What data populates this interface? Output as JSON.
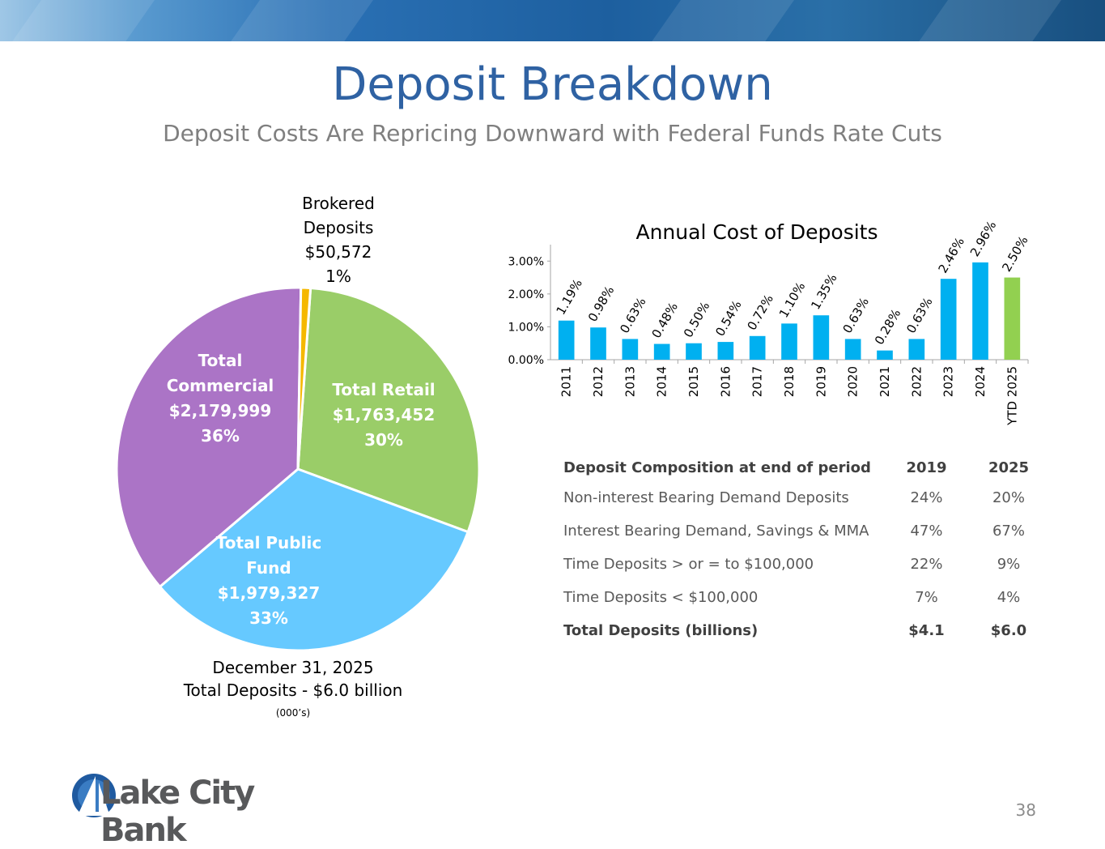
{
  "header": {
    "title": "Deposit Breakdown",
    "subtitle": "Deposit Costs Are Repricing Downward with Federal Funds Rate Cuts"
  },
  "chart_data": [
    {
      "type": "pie",
      "slices": [
        {
          "label": "Total Retail",
          "value": 1763452,
          "value_text": "$1,763,452",
          "percent": "30%",
          "color": "#9acd68"
        },
        {
          "label": "Total Public Fund",
          "value": 1979327,
          "value_text": "$1,979,327",
          "percent": "33%",
          "color": "#66c9ff"
        },
        {
          "label": "Total Commercial",
          "value": 2179999,
          "value_text": "$2,179,999",
          "percent": "36%",
          "color": "#ab74c6"
        },
        {
          "label": "Brokered Deposits",
          "value": 50572,
          "value_text": "$50,572",
          "percent": "1%",
          "color": "#f5b800"
        }
      ],
      "caption_date": "December 31, 2025",
      "caption_total": "Total Deposits - $6.0 billion",
      "caption_units": "(000’s)"
    },
    {
      "type": "bar",
      "title": "Annual Cost of Deposits",
      "categories": [
        "2011",
        "2012",
        "2013",
        "2014",
        "2015",
        "2016",
        "2017",
        "2018",
        "2019",
        "2020",
        "2021",
        "2022",
        "2023",
        "2024",
        "YTD 2025"
      ],
      "values": [
        1.19,
        0.98,
        0.63,
        0.48,
        0.5,
        0.54,
        0.72,
        1.1,
        1.35,
        0.63,
        0.28,
        0.63,
        2.46,
        2.96,
        2.5
      ],
      "labels": [
        "1.19%",
        "0.98%",
        "0.63%",
        "0.48%",
        "0.50%",
        "0.54%",
        "0.72%",
        "1.10%",
        "1.35%",
        "0.63%",
        "0.28%",
        "0.63%",
        "2.46%",
        "2.96%",
        "2.50%"
      ],
      "colors": [
        "#00b0f0",
        "#00b0f0",
        "#00b0f0",
        "#00b0f0",
        "#00b0f0",
        "#00b0f0",
        "#00b0f0",
        "#00b0f0",
        "#00b0f0",
        "#00b0f0",
        "#00b0f0",
        "#00b0f0",
        "#00b0f0",
        "#00b0f0",
        "#92d050"
      ],
      "yticks": [
        "0.00%",
        "1.00%",
        "2.00%",
        "3.00%"
      ],
      "ylim": [
        0,
        3.5
      ]
    }
  ],
  "composition": {
    "header": [
      "Deposit Composition at end of period",
      "2019",
      "2025"
    ],
    "rows": [
      [
        "Non-interest Bearing Demand Deposits",
        "24%",
        "20%"
      ],
      [
        "Interest Bearing Demand, Savings & MMA",
        "47%",
        "67%"
      ],
      [
        "Time Deposits > or = to $100,000",
        "22%",
        "9%"
      ],
      [
        "Time Deposits < $100,000",
        "7%",
        "4%"
      ]
    ],
    "total": [
      "Total Deposits (billions)",
      "$4.1",
      "$6.0"
    ]
  },
  "footer": {
    "logo_text": "Lake City Bank",
    "page_number": "38"
  }
}
